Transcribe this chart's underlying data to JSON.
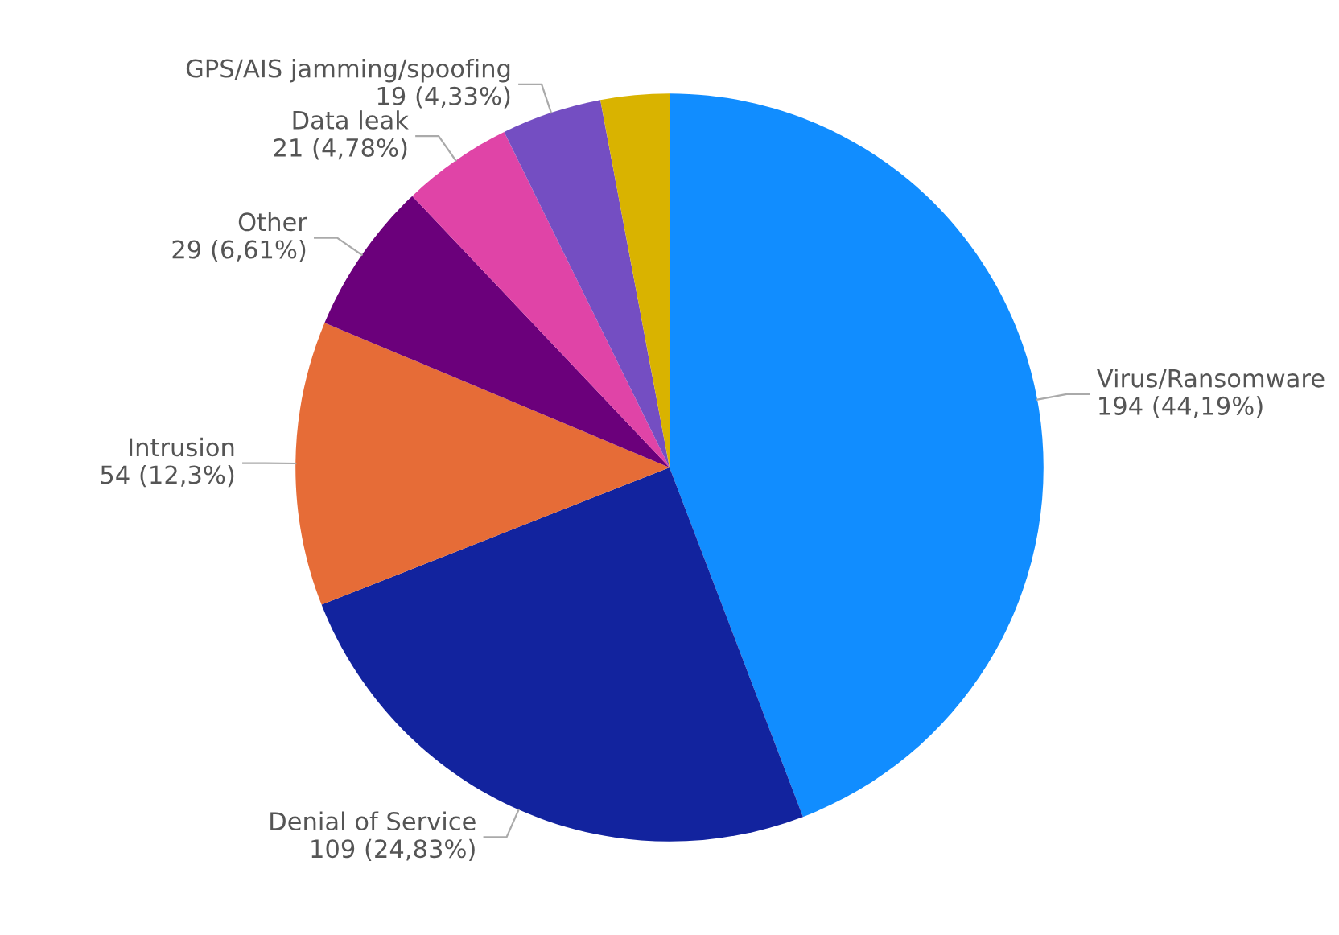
{
  "chart_data": {
    "type": "pie",
    "categories": [
      "Virus/Ransomware",
      "Denial of Service",
      "Intrusion",
      "Other",
      "Data leak",
      "GPS/AIS jamming/spoofing",
      null
    ],
    "values": [
      194,
      109,
      54,
      29,
      21,
      19,
      13
    ],
    "value_labels": [
      "194 (44,19%)",
      "109 (24,83%)",
      "54 (12,3%)",
      "29 (6,61%)",
      "21 (4,78%)",
      "19 (4,33%)",
      null
    ],
    "colors": [
      "#118dff",
      "#12239e",
      "#e66c37",
      "#6b007b",
      "#e044a7",
      "#744ec2",
      "#d9b300"
    ],
    "legend": false
  }
}
